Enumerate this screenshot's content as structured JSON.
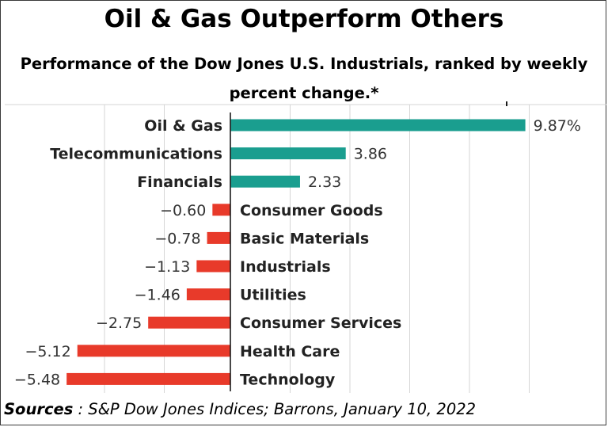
{
  "chart_data": {
    "type": "bar",
    "orientation": "horizontal",
    "title": "Oil & Gas Outperform Others",
    "subtitle_lines": [
      "Performance of the Dow Jones U.S. Industrials, ranked by weekly",
      "percent change.*"
    ],
    "categories": [
      "Oil & Gas",
      "Telecommunications",
      "Financials",
      "Consumer Goods",
      "Basic Materials",
      "Industrials",
      "Utilities",
      "Consumer Services",
      "Health Care",
      "Technology"
    ],
    "values": [
      9.87,
      3.86,
      2.33,
      -0.6,
      -0.78,
      -1.13,
      -1.46,
      -2.75,
      -5.12,
      -5.48
    ],
    "value_labels": [
      "9.87%",
      "3.86",
      "2.33",
      "−0.60",
      "−0.78",
      "−1.13",
      "−1.46",
      "−2.75",
      "−5.12",
      "−5.48"
    ],
    "xlim": [
      -5.8,
      10.5
    ],
    "colors": {
      "positive": "#1a9e8f",
      "negative": "#e83a2a",
      "grid": "#d6d6d6",
      "axis": "#1a1a1a"
    },
    "grid": true
  },
  "source": {
    "label": "Sources",
    "text": " : S&P Dow Jones Indices; Barrons, January 10, 2022"
  }
}
